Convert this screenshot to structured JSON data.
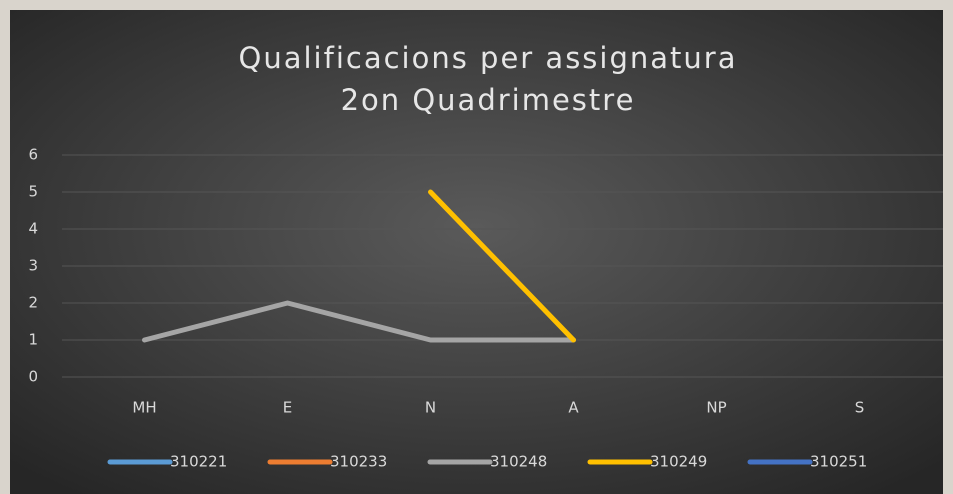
{
  "chart_data": {
    "type": "line",
    "title": "Qualificacions per assignatura",
    "subtitle": "2on Quadrimestre",
    "categories": [
      "MH",
      "E",
      "N",
      "A",
      "NP",
      "S"
    ],
    "series": [
      {
        "name": "310221",
        "color": "#5b9bd5",
        "values": [
          null,
          null,
          null,
          null,
          null,
          null
        ]
      },
      {
        "name": "310233",
        "color": "#ed7d31",
        "values": [
          null,
          null,
          null,
          null,
          null,
          null
        ]
      },
      {
        "name": "310248",
        "color": "#a5a5a5",
        "values": [
          1,
          2,
          1,
          1,
          null,
          null
        ]
      },
      {
        "name": "310249",
        "color": "#ffc000",
        "values": [
          null,
          null,
          5,
          1,
          null,
          null
        ]
      },
      {
        "name": "310251",
        "color": "#4472c4",
        "values": [
          null,
          null,
          null,
          null,
          null,
          null
        ]
      }
    ],
    "ylim": [
      0,
      6
    ],
    "yticks": [
      0,
      1,
      2,
      3,
      4,
      5,
      6
    ],
    "grid": true,
    "legend": "bottom"
  }
}
